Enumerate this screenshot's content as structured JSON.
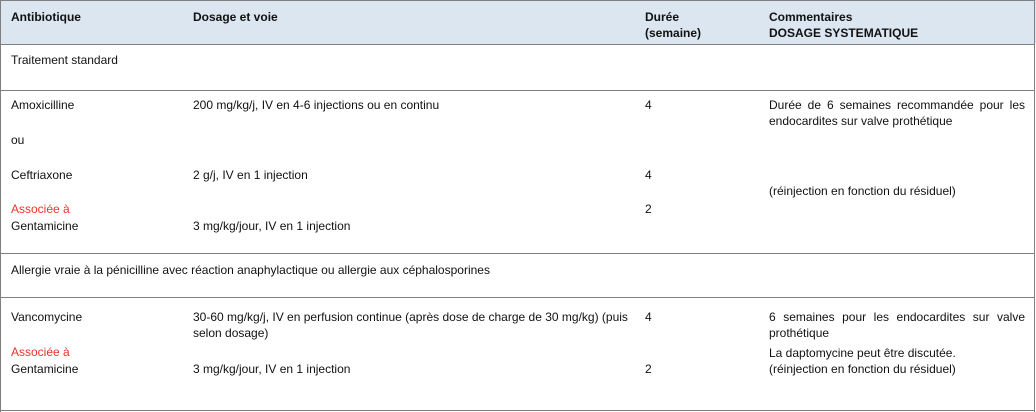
{
  "header": {
    "antibiotic": "Antibiotique",
    "dosage": "Dosage et voie",
    "duration_line1": "Durée",
    "duration_line2": "(semaine)",
    "comments_line1": "Commentaires",
    "comments_line2": "DOSAGE SYSTEMATIQUE"
  },
  "section1": {
    "title": "Traitement standard",
    "amox_name": "Amoxicilline",
    "amox_dose": "200 mg/kg/j, IV en 4-6 injections ou en continu",
    "amox_duration": "4",
    "amox_comment": "Durée de 6 semaines recommandée pour les endocardites sur valve prothétique",
    "or_label": "ou",
    "ceftri_name": "Ceftriaxone",
    "ceftri_dose": "2 g/j, IV en 1 injection",
    "ceftri_duration": "4",
    "ceftri_comment": "(réinjection en fonction du résiduel)",
    "assoc_label": "Associée à",
    "genta_name": "Gentamicine",
    "genta_dose": "3 mg/kg/jour, IV en 1 injection",
    "genta_duration": "2"
  },
  "section2": {
    "title": "Allergie vraie à la pénicilline avec réaction anaphylactique ou allergie aux céphalosporines",
    "vanco_name": "Vancomycine",
    "vanco_dose": "30-60 mg/kg/j, IV en perfusion continue (après dose de charge de 30 mg/kg) (puis selon dosage)",
    "vanco_duration": "4",
    "vanco_comment1": "6 semaines pour les endocardites sur valve prothétique",
    "vanco_comment2": "La daptomycine peut être discutée.",
    "vanco_comment3": "(réinjection en fonction du résiduel)",
    "assoc_label": "Associée à",
    "genta_name": "Gentamicine",
    "genta_dose": "3 mg/kg/jour, IV en 1 injection",
    "genta_duration": "2"
  }
}
